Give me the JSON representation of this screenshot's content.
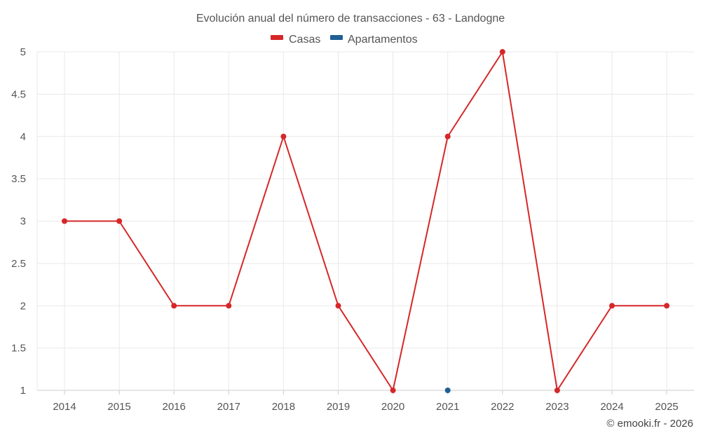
{
  "chart_data": {
    "type": "line",
    "title": "Evolución anual del número de transacciones - 63 - Landogne",
    "xlabel": "",
    "ylabel": "",
    "categories": [
      "2014",
      "2015",
      "2016",
      "2017",
      "2018",
      "2019",
      "2020",
      "2021",
      "2022",
      "2023",
      "2024",
      "2025"
    ],
    "ylim": [
      1,
      5
    ],
    "yticks": [
      "1",
      "1.5",
      "2",
      "2.5",
      "3",
      "3.5",
      "4",
      "4.5",
      "5"
    ],
    "grid": true,
    "legend_position": "top-center",
    "series": [
      {
        "name": "Casas",
        "color": "#d62728",
        "values": [
          3,
          3,
          2,
          2,
          4,
          2,
          1,
          4,
          5,
          1,
          2,
          2
        ]
      },
      {
        "name": "Apartamentos",
        "color": "#1f5f95",
        "values": [
          null,
          null,
          null,
          null,
          null,
          null,
          null,
          1,
          null,
          null,
          null,
          null
        ]
      }
    ]
  },
  "credit": "© emooki.fr - 2026"
}
